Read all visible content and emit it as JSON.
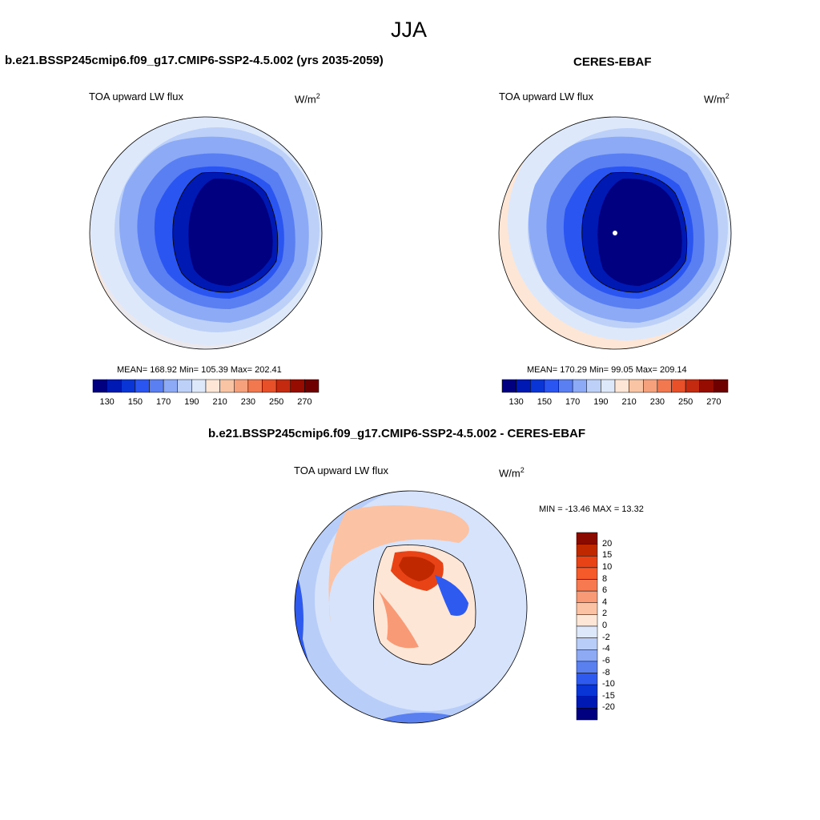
{
  "figure": {
    "season": "JJA"
  },
  "panels": {
    "model": {
      "title": "b.e21.BSSP245cmip6.f09_g17.CMIP6-SSP2-4.5.002 (yrs 2035-2059)",
      "variable": "TOA upward LW flux",
      "units_base": "W/m",
      "units_exp": "2",
      "stats": "MEAN= 168.92  Min= 105.39  Max= 202.41"
    },
    "obs": {
      "title": "CERES-EBAF",
      "variable": "TOA upward LW flux",
      "units_base": "W/m",
      "units_exp": "2",
      "stats": "MEAN= 170.29  Min=  99.05  Max= 209.14"
    },
    "diff": {
      "title": "b.e21.BSSP245cmip6.f09_g17.CMIP6-SSP2-4.5.002 - CERES-EBAF",
      "variable": "TOA upward LW flux",
      "units_base": "W/m",
      "units_exp": "2",
      "stats": "MIN = -13.46 MAX =  13.32"
    }
  },
  "colorbars": {
    "abs_ticks": [
      "130",
      "150",
      "170",
      "190",
      "210",
      "230",
      "250",
      "270"
    ],
    "abs_colors": [
      "#000080",
      "#0019b3",
      "#0a35d6",
      "#2b55f0",
      "#5a7ff2",
      "#8caaf5",
      "#bcd0f8",
      "#dde9fb",
      "#fde6d6",
      "#f9c4a4",
      "#f6a07c",
      "#f2784f",
      "#e8502a",
      "#c32a10",
      "#960d00",
      "#6e0000"
    ],
    "diff_ticks": [
      "20",
      "15",
      "10",
      "8",
      "6",
      "4",
      "2",
      "0",
      "-2",
      "-4",
      "-6",
      "-8",
      "-10",
      "-15",
      "-20"
    ],
    "diff_colors": [
      "#8a0a00",
      "#c02800",
      "#e84316",
      "#f45a2a",
      "#f7794f",
      "#f99a76",
      "#fbc2a4",
      "#fde6d6",
      "#dde9fb",
      "#b8cdf8",
      "#8eaaf4",
      "#5a80f0",
      "#2f5af0",
      "#0a35d6",
      "#0019b3",
      "#000080"
    ]
  }
}
